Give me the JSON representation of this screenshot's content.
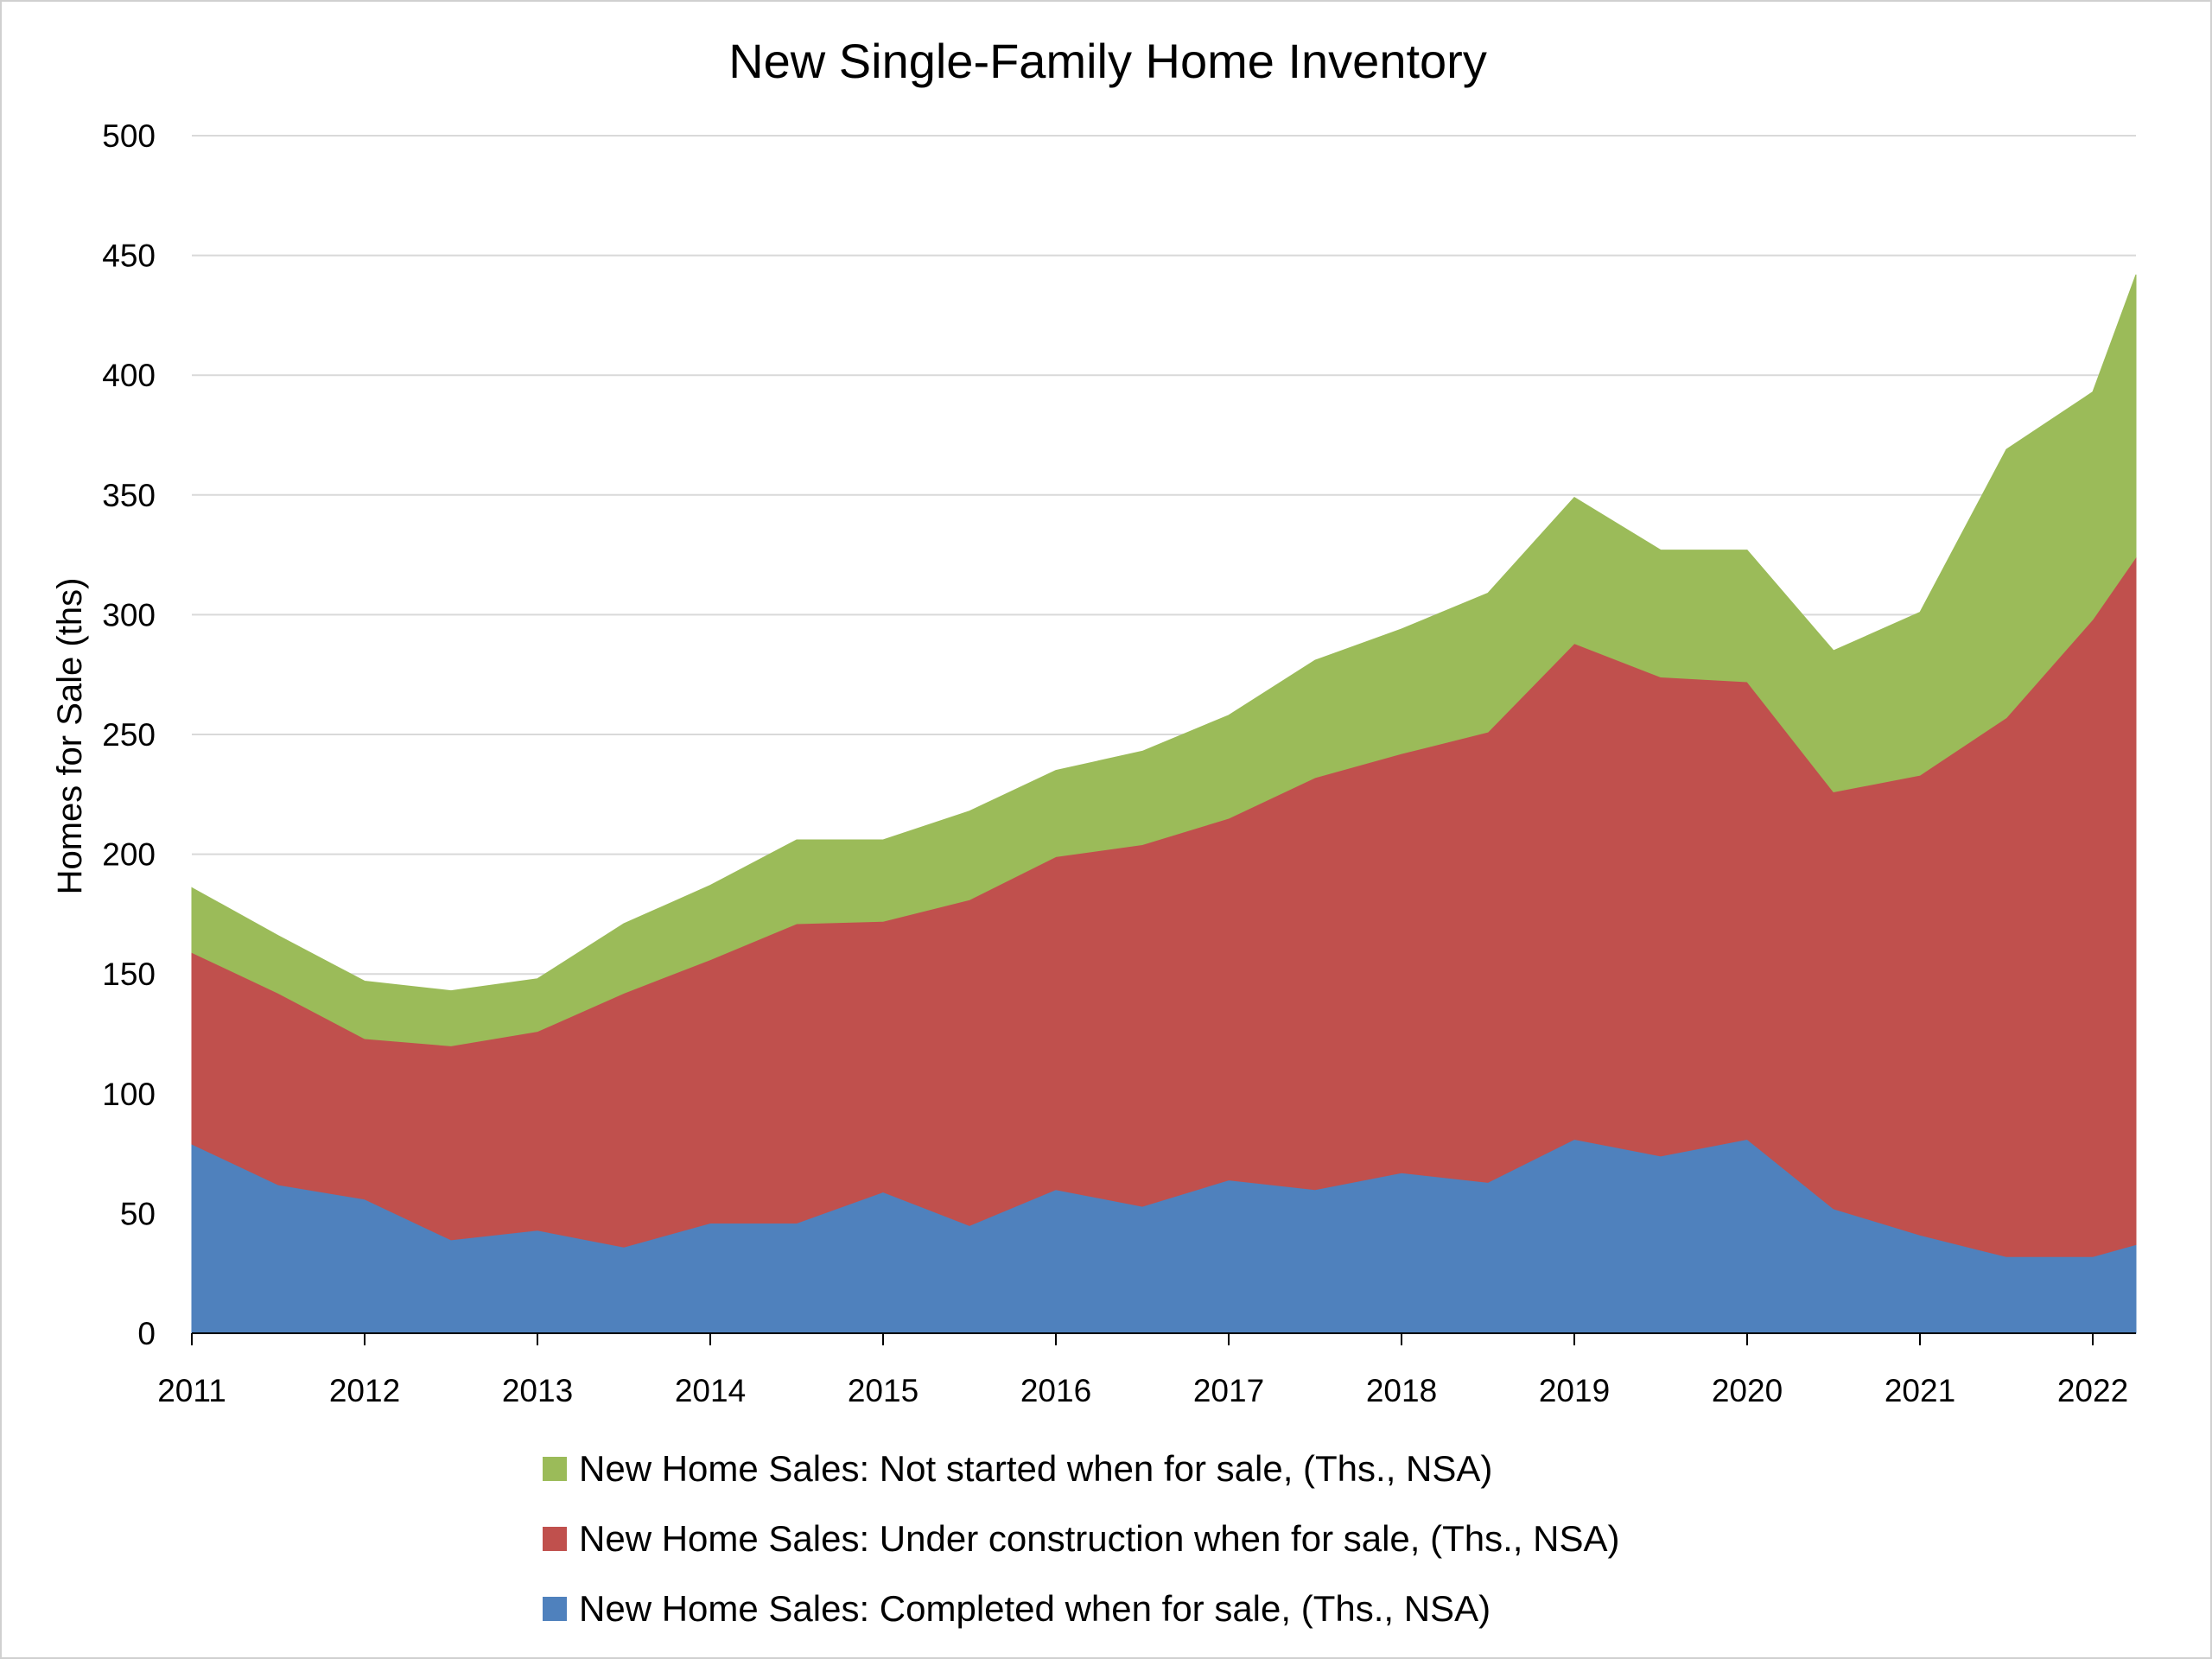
{
  "chart_data": {
    "type": "area",
    "stacked": true,
    "title": "New Single-Family Home Inventory",
    "xlabel": "",
    "ylabel": "Homes for Sale (ths)",
    "ylim": [
      0,
      500
    ],
    "yticks": [
      0,
      50,
      100,
      150,
      200,
      250,
      300,
      350,
      400,
      450,
      500
    ],
    "xlim": [
      2011,
      2022.25
    ],
    "xticks": [
      "2011",
      "2012",
      "2013",
      "2014",
      "2015",
      "2016",
      "2017",
      "2018",
      "2019",
      "2020",
      "2021",
      "2022"
    ],
    "grid": true,
    "legend_position": "bottom",
    "x": [
      "2011-01",
      "2011-07",
      "2012-01",
      "2012-07",
      "2013-01",
      "2013-07",
      "2014-01",
      "2014-07",
      "2015-01",
      "2015-07",
      "2016-01",
      "2016-07",
      "2017-01",
      "2017-07",
      "2018-01",
      "2018-07",
      "2019-01",
      "2019-07",
      "2020-01",
      "2020-07",
      "2021-01",
      "2021-07",
      "2022-01",
      "2022-04"
    ],
    "series": [
      {
        "name": "New Home Sales: Completed when for sale, (Ths., NSA)",
        "color": "#4F81BD",
        "values": [
          79,
          62,
          56,
          39,
          43,
          36,
          46,
          46,
          59,
          45,
          60,
          53,
          64,
          60,
          67,
          63,
          81,
          74,
          81,
          52,
          41,
          32,
          32,
          37
        ]
      },
      {
        "name": "New Home Sales: Under construction when for sale, (Ths., NSA)",
        "color": "#C0504D",
        "values": [
          80,
          80,
          67,
          81,
          83,
          106,
          110,
          125,
          113,
          136,
          139,
          151,
          151,
          172,
          175,
          188,
          207,
          200,
          191,
          174,
          192,
          225,
          266,
          287
        ]
      },
      {
        "name": "New Home Sales: Not started when for sale, (Ths., NSA)",
        "color": "#9BBB59",
        "values": [
          27,
          24,
          24,
          23,
          22,
          29,
          31,
          35,
          34,
          37,
          36,
          39,
          43,
          49,
          52,
          58,
          61,
          53,
          55,
          59,
          68,
          112,
          95,
          118
        ]
      }
    ]
  },
  "legend": [
    {
      "label": "New Home Sales: Not started when for sale, (Ths., NSA)",
      "color": "#9BBB59"
    },
    {
      "label": "New Home Sales: Under construction when for sale, (Ths., NSA)",
      "color": "#C0504D"
    },
    {
      "label": "New Home Sales: Completed when for sale, (Ths., NSA)",
      "color": "#4F81BD"
    }
  ]
}
